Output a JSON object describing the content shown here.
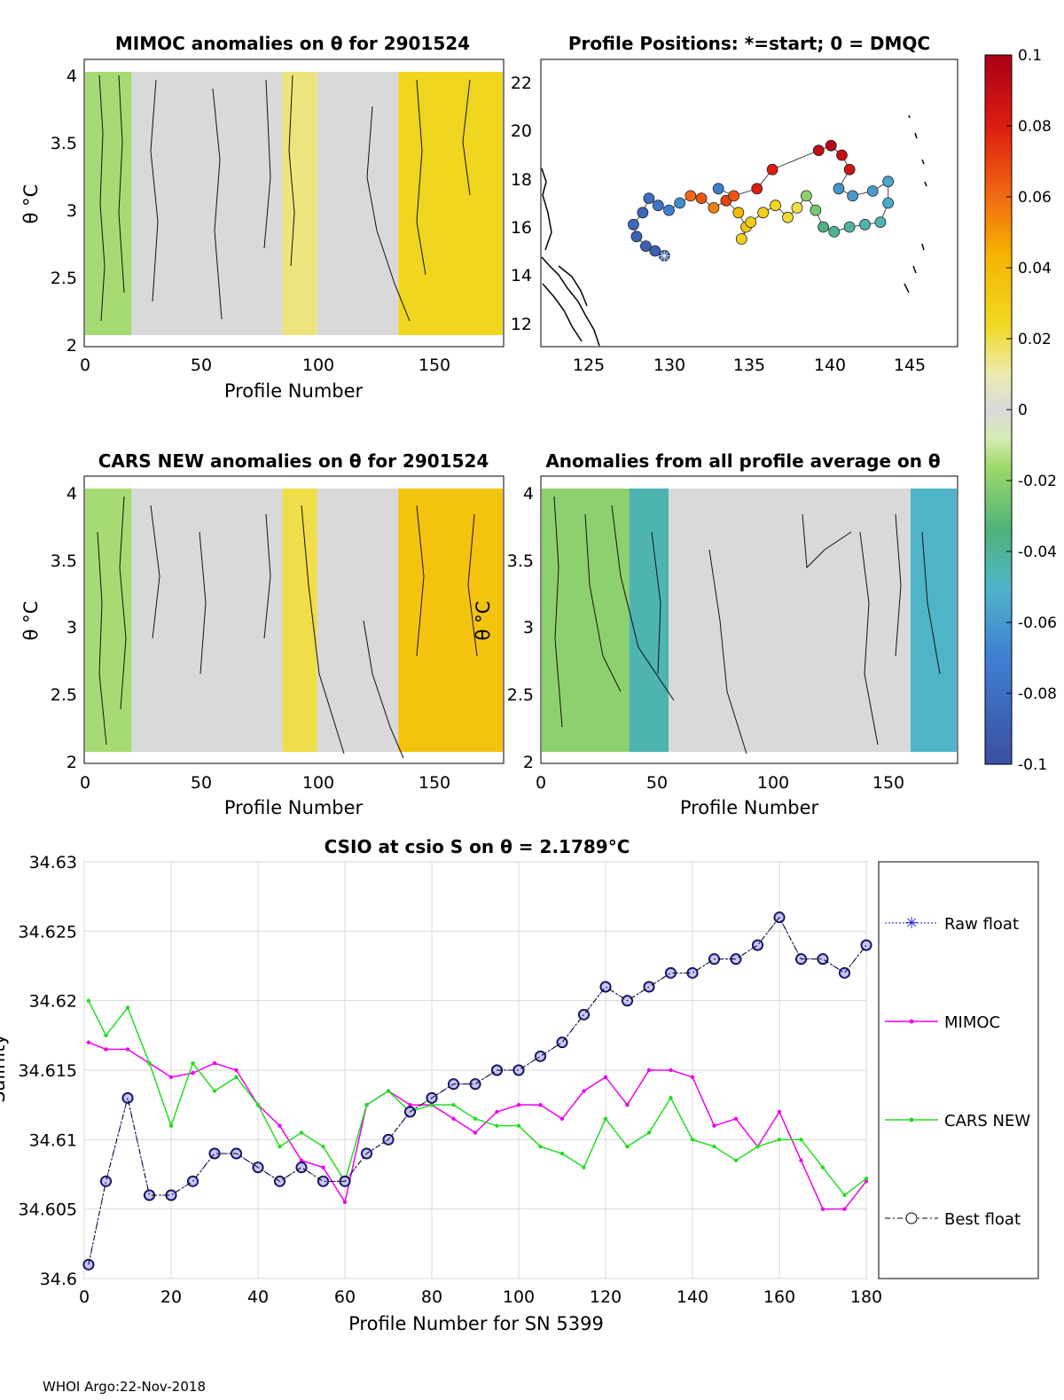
{
  "figure": {
    "footer": "WHOI Argo:22-Nov-2018"
  },
  "chart_data": [
    {
      "type": "heatmap",
      "title": "MIMOC anomalies on θ  for 2901524",
      "xlabel": "Profile Number",
      "ylabel": "θ °C",
      "xlim": [
        0,
        180
      ],
      "ylim": [
        2,
        4.1
      ],
      "x_ticks": [
        "0",
        "50",
        "100",
        "150"
      ],
      "y_ticks": [
        "2",
        "2.5",
        "3",
        "3.5",
        "4"
      ],
      "field_summary": [
        {
          "profiles": [
            0,
            20
          ],
          "anomaly": -0.015
        },
        {
          "profiles": [
            20,
            85
          ],
          "anomaly": 0.0
        },
        {
          "profiles": [
            85,
            100
          ],
          "anomaly": 0.015
        },
        {
          "profiles": [
            100,
            135
          ],
          "anomaly": 0.0
        },
        {
          "profiles": [
            135,
            180
          ],
          "anomaly": 0.025
        }
      ]
    },
    {
      "type": "scatter",
      "title": "Profile Positions: *=start; 0 = DMQC",
      "xlim": [
        121,
        148
      ],
      "ylim": [
        11,
        23
      ],
      "x_ticks": [
        "125",
        "130",
        "135",
        "140",
        "145"
      ],
      "y_ticks": [
        "12",
        "14",
        "16",
        "18",
        "20",
        "22"
      ],
      "track": [
        {
          "lon": 129.0,
          "lat": 14.8,
          "anomaly": -0.095
        },
        {
          "lon": 128.4,
          "lat": 15.0,
          "anomaly": -0.09
        },
        {
          "lon": 127.8,
          "lat": 15.2,
          "anomaly": -0.09
        },
        {
          "lon": 127.2,
          "lat": 15.6,
          "anomaly": -0.088
        },
        {
          "lon": 127.0,
          "lat": 16.1,
          "anomaly": -0.085
        },
        {
          "lon": 127.6,
          "lat": 16.6,
          "anomaly": -0.085
        },
        {
          "lon": 128.0,
          "lat": 17.2,
          "anomaly": -0.08
        },
        {
          "lon": 128.6,
          "lat": 16.9,
          "anomaly": -0.075
        },
        {
          "lon": 129.3,
          "lat": 16.7,
          "anomaly": -0.07
        },
        {
          "lon": 130.0,
          "lat": 17.0,
          "anomaly": -0.065
        },
        {
          "lon": 130.7,
          "lat": 17.3,
          "anomaly": 0.06
        },
        {
          "lon": 131.4,
          "lat": 17.2,
          "anomaly": 0.065
        },
        {
          "lon": 132.2,
          "lat": 16.8,
          "anomaly": 0.055
        },
        {
          "lon": 133.0,
          "lat": 17.1,
          "anomaly": 0.07
        },
        {
          "lon": 133.8,
          "lat": 16.6,
          "anomaly": 0.04
        },
        {
          "lon": 134.3,
          "lat": 16.0,
          "anomaly": 0.035
        },
        {
          "lon": 134.0,
          "lat": 15.5,
          "anomaly": 0.03
        },
        {
          "lon": 134.6,
          "lat": 16.2,
          "anomaly": 0.03
        },
        {
          "lon": 135.4,
          "lat": 16.6,
          "anomaly": 0.028
        },
        {
          "lon": 136.2,
          "lat": 16.9,
          "anomaly": 0.026
        },
        {
          "lon": 137.0,
          "lat": 16.4,
          "anomaly": 0.022
        },
        {
          "lon": 137.6,
          "lat": 16.8,
          "anomaly": 0.02
        },
        {
          "lon": 138.2,
          "lat": 17.3,
          "anomaly": -0.02
        },
        {
          "lon": 138.8,
          "lat": 16.7,
          "anomaly": -0.025
        },
        {
          "lon": 139.3,
          "lat": 16.0,
          "anomaly": -0.035
        },
        {
          "lon": 140.0,
          "lat": 15.8,
          "anomaly": -0.04
        },
        {
          "lon": 141.0,
          "lat": 16.0,
          "anomaly": -0.042
        },
        {
          "lon": 142.0,
          "lat": 16.1,
          "anomaly": -0.045
        },
        {
          "lon": 143.0,
          "lat": 16.2,
          "anomaly": -0.045
        },
        {
          "lon": 143.5,
          "lat": 17.0,
          "anomaly": -0.055
        },
        {
          "lon": 143.5,
          "lat": 17.9,
          "anomaly": -0.055
        },
        {
          "lon": 142.5,
          "lat": 17.5,
          "anomaly": -0.06
        },
        {
          "lon": 141.2,
          "lat": 17.3,
          "anomaly": -0.06
        },
        {
          "lon": 140.3,
          "lat": 17.6,
          "anomaly": -0.062
        },
        {
          "lon": 141.0,
          "lat": 18.4,
          "anomaly": 0.085
        },
        {
          "lon": 140.5,
          "lat": 19.0,
          "anomaly": 0.09
        },
        {
          "lon": 139.8,
          "lat": 19.4,
          "anomaly": 0.095
        },
        {
          "lon": 139.0,
          "lat": 19.2,
          "anomaly": 0.09
        },
        {
          "lon": 136.0,
          "lat": 18.4,
          "anomaly": 0.08
        },
        {
          "lon": 135.0,
          "lat": 17.6,
          "anomaly": 0.08
        },
        {
          "lon": 133.5,
          "lat": 17.3,
          "anomaly": 0.065
        },
        {
          "lon": 132.5,
          "lat": 17.6,
          "anomaly": -0.07
        }
      ]
    },
    {
      "type": "heatmap",
      "title": "CARS NEW anomalies on θ for 2901524",
      "xlabel": "Profile Number",
      "ylabel": "θ °C",
      "xlim": [
        0,
        180
      ],
      "ylim": [
        2,
        4.1
      ],
      "x_ticks": [
        "0",
        "50",
        "100",
        "150"
      ],
      "y_ticks": [
        "2",
        "2.5",
        "3",
        "3.5",
        "4"
      ],
      "field_summary": [
        {
          "profiles": [
            0,
            20
          ],
          "anomaly": -0.015
        },
        {
          "profiles": [
            20,
            85
          ],
          "anomaly": 0.0
        },
        {
          "profiles": [
            85,
            100
          ],
          "anomaly": 0.02
        },
        {
          "profiles": [
            100,
            135
          ],
          "anomaly": 0.0
        },
        {
          "profiles": [
            135,
            180
          ],
          "anomaly": 0.035
        }
      ]
    },
    {
      "type": "heatmap",
      "title": "Anomalies from all profile average on θ",
      "xlabel": "Profile Number",
      "ylabel": "θ °C",
      "xlim": [
        0,
        180
      ],
      "ylim": [
        2,
        4.1
      ],
      "x_ticks": [
        "0",
        "50",
        "100",
        "150"
      ],
      "y_ticks": [
        "2",
        "2.5",
        "3",
        "3.5",
        "4"
      ],
      "field_summary": [
        {
          "profiles": [
            0,
            50
          ],
          "anomaly": -0.02
        },
        {
          "profiles": [
            38,
            55
          ],
          "anomaly": -0.045
        },
        {
          "profiles": [
            55,
            170
          ],
          "anomaly": 0.0
        },
        {
          "profiles": [
            160,
            180
          ],
          "anomaly": -0.05
        }
      ]
    },
    {
      "type": "colorbar",
      "range": [
        -0.1,
        0.1
      ],
      "tick_labels": [
        "0.1",
        "0.08",
        "0.06",
        "0.04",
        "0.02",
        "0",
        "-0.02",
        "-0.04",
        "-0.06",
        "-0.08",
        "-0.1"
      ]
    },
    {
      "type": "line",
      "title": "CSIO at csio S on θ = 2.1789°C",
      "xlabel": "Profile Number for SN 5399",
      "ylabel": "Salinity",
      "xlim": [
        0,
        180
      ],
      "ylim": [
        34.6,
        34.63
      ],
      "x_ticks": [
        "0",
        "20",
        "40",
        "60",
        "80",
        "100",
        "120",
        "140",
        "160",
        "180"
      ],
      "y_ticks": [
        "34.6",
        "34.605",
        "34.61",
        "34.615",
        "34.62",
        "34.625",
        "34.63"
      ],
      "x": [
        1,
        5,
        10,
        15,
        20,
        25,
        30,
        35,
        40,
        45,
        50,
        55,
        60,
        65,
        70,
        75,
        80,
        85,
        90,
        95,
        100,
        105,
        110,
        115,
        120,
        125,
        130,
        135,
        140,
        145,
        150,
        155,
        160,
        165,
        170,
        175,
        180
      ],
      "series": [
        {
          "name": "Raw float",
          "values": [
            34.601,
            34.607,
            34.613,
            34.606,
            34.606,
            34.607,
            34.609,
            34.609,
            34.608,
            34.607,
            34.608,
            34.607,
            34.607,
            34.609,
            34.61,
            34.612,
            34.613,
            34.614,
            34.614,
            34.615,
            34.615,
            34.616,
            34.617,
            34.619,
            34.621,
            34.62,
            34.621,
            34.622,
            34.622,
            34.623,
            34.623,
            34.624,
            34.626,
            34.623,
            34.623,
            34.622,
            34.624
          ]
        },
        {
          "name": "MIMOC",
          "values": [
            34.617,
            34.6165,
            34.6165,
            34.6155,
            34.6145,
            34.6148,
            34.6155,
            34.615,
            34.6125,
            34.611,
            34.6085,
            34.608,
            34.6055,
            34.6125,
            34.6135,
            34.6125,
            34.6125,
            34.6115,
            34.6105,
            34.612,
            34.6125,
            34.6125,
            34.6115,
            34.6135,
            34.6145,
            34.6125,
            34.615,
            34.615,
            34.6145,
            34.611,
            34.6115,
            34.6095,
            34.612,
            34.6085,
            34.605,
            34.605,
            34.607
          ]
        },
        {
          "name": "CARS NEW",
          "values": [
            34.62,
            34.6175,
            34.6195,
            34.6155,
            34.611,
            34.6155,
            34.6135,
            34.6145,
            34.6125,
            34.6095,
            34.6105,
            34.6095,
            34.607,
            34.6125,
            34.6135,
            34.612,
            34.6125,
            34.6125,
            34.6115,
            34.611,
            34.611,
            34.6095,
            34.609,
            34.608,
            34.6115,
            34.6095,
            34.6105,
            34.613,
            34.61,
            34.6095,
            34.6085,
            34.6095,
            34.61,
            34.61,
            34.608,
            34.606,
            34.6072
          ]
        },
        {
          "name": "Best float",
          "values": [
            34.601,
            34.607,
            34.613,
            34.606,
            34.606,
            34.607,
            34.609,
            34.609,
            34.608,
            34.607,
            34.608,
            34.607,
            34.607,
            34.609,
            34.61,
            34.612,
            34.613,
            34.614,
            34.614,
            34.615,
            34.615,
            34.616,
            34.617,
            34.619,
            34.621,
            34.62,
            34.621,
            34.622,
            34.622,
            34.623,
            34.623,
            34.624,
            34.626,
            34.623,
            34.623,
            34.622,
            34.624
          ]
        }
      ],
      "legend": [
        "Raw float",
        "MIMOC",
        "CARS NEW",
        "Best float"
      ],
      "legend_position": "right"
    }
  ]
}
